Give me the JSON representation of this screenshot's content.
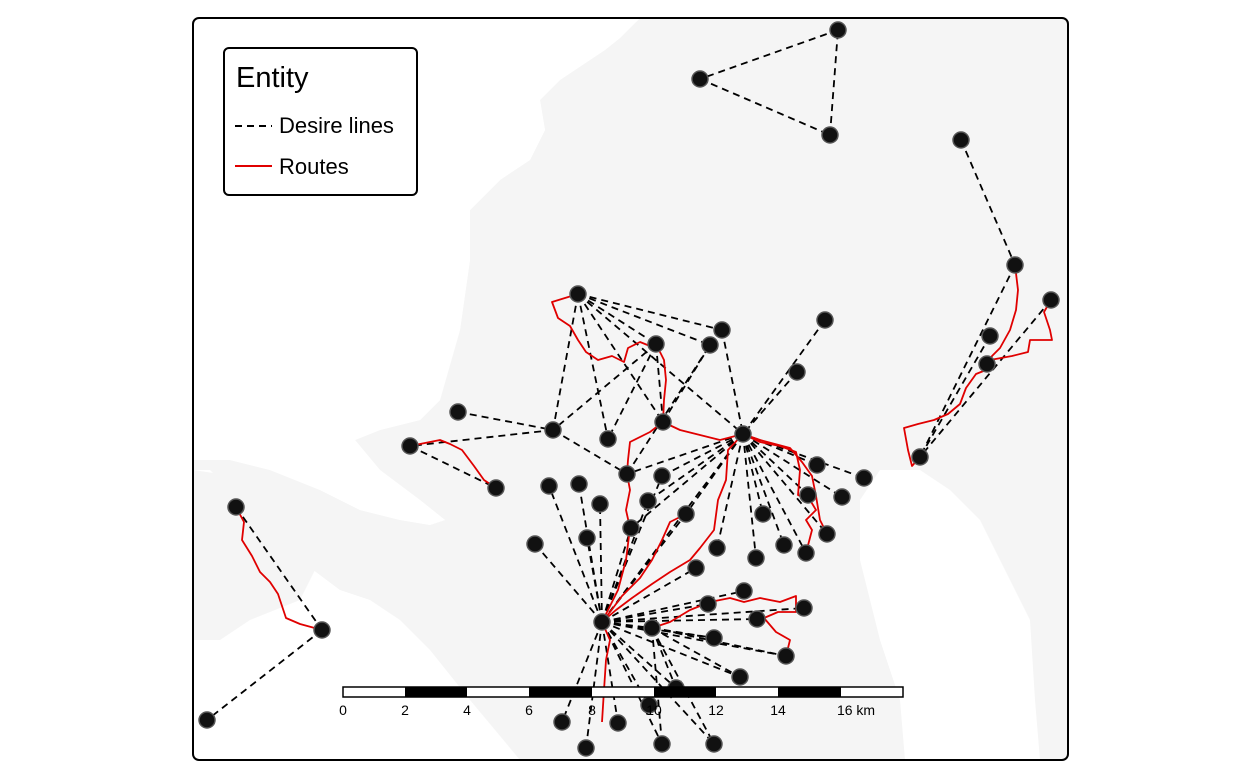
{
  "legend": {
    "title": "Entity",
    "items": [
      {
        "label": "Desire lines",
        "style": "dashed",
        "color": "#000000"
      },
      {
        "label": "Routes",
        "style": "solid",
        "color": "#e00000"
      }
    ]
  },
  "scale_bar": {
    "labels": [
      "0",
      "2",
      "4",
      "6",
      "8",
      "10",
      "12",
      "14",
      "16 km"
    ]
  },
  "colors": {
    "land": "#f5f5f5",
    "sea": "#ffffff",
    "frame": "#000000",
    "desire_line": "#000000",
    "route": "#e00000",
    "point_fill": "#111111",
    "point_stroke": "#555555"
  }
}
